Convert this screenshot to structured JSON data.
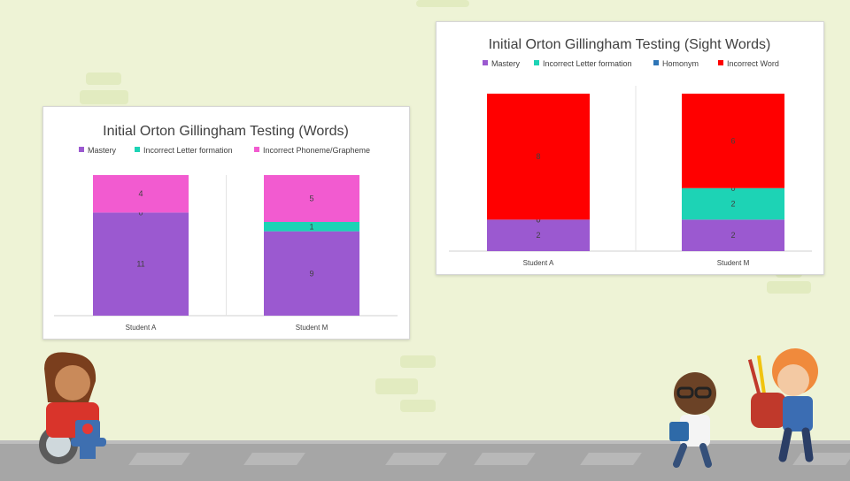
{
  "chart_data": [
    {
      "type": "bar",
      "stacked": true,
      "title": "Initial Orton Gillingham Testing (Words)",
      "categories": [
        "Student A",
        "Student M"
      ],
      "series": [
        {
          "name": "Mastery",
          "color": "#9b59d0",
          "values": [
            11,
            9
          ]
        },
        {
          "name": "Incorrect Letter formation",
          "color": "#1dd3b5",
          "values": [
            0,
            1
          ]
        },
        {
          "name": "Incorrect Phoneme/Grapheme",
          "color": "#f25bd0",
          "values": [
            4,
            5
          ]
        }
      ],
      "legend_position": "top",
      "grid": false
    },
    {
      "type": "bar",
      "stacked": true,
      "title": "Initial Orton Gillingham Testing (Sight Words)",
      "categories": [
        "Student A",
        "Student M"
      ],
      "series": [
        {
          "name": "Mastery",
          "color": "#9b59d0",
          "values": [
            2,
            2
          ]
        },
        {
          "name": "Incorrect Letter formation",
          "color": "#1dd3b5",
          "values": [
            0,
            2
          ]
        },
        {
          "name": "Homonym",
          "color": "#2e75b6",
          "values": [
            0,
            0
          ]
        },
        {
          "name": "Incorrect Word",
          "color": "#ff0000",
          "values": [
            8,
            6
          ]
        }
      ],
      "legend_position": "top",
      "grid": false
    }
  ]
}
